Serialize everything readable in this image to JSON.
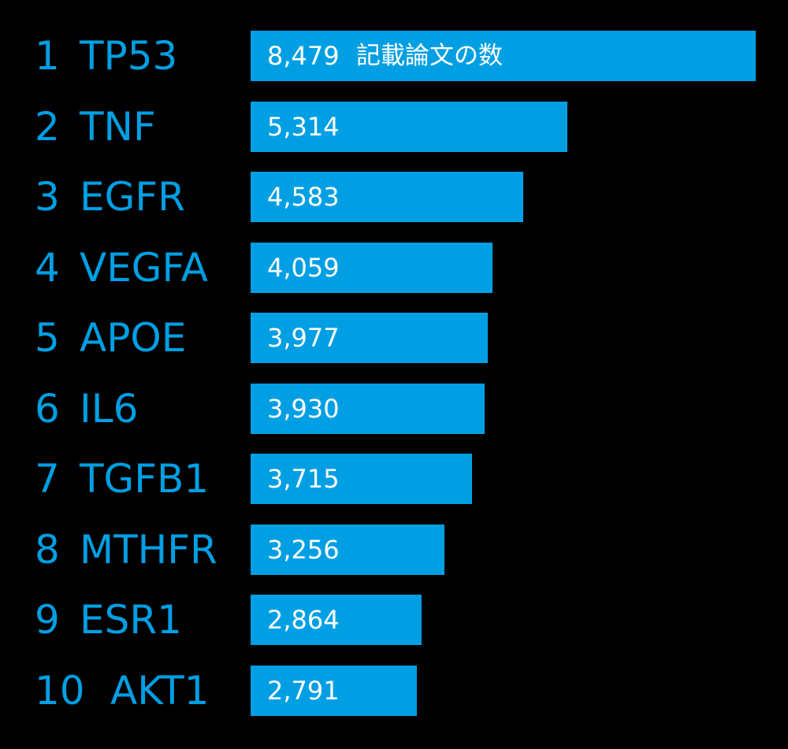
{
  "theme": {
    "background": "#000000",
    "accent": "#009fe3",
    "bar_text": "#ffffff"
  },
  "chart_data": {
    "type": "bar",
    "orientation": "horizontal",
    "unit_label": "記載論文の数",
    "xlim": [
      0,
      8479
    ],
    "grid": false,
    "legend": "none",
    "categories": [
      "TP53",
      "TNF",
      "EGFR",
      "VEGFA",
      "APOE",
      "IL6",
      "TGFB1",
      "MTHFR",
      "ESR1",
      "AKT1"
    ],
    "ranks": [
      "1",
      "2",
      "3",
      "4",
      "5",
      "6",
      "7",
      "8",
      "9",
      "10"
    ],
    "values": [
      8479,
      5314,
      4583,
      4059,
      3977,
      3930,
      3715,
      3256,
      2864,
      2791
    ],
    "value_labels": [
      "8,479",
      "5,314",
      "4,583",
      "4,059",
      "3,977",
      "3,930",
      "3,715",
      "3,256",
      "2,864",
      "2,791"
    ]
  }
}
